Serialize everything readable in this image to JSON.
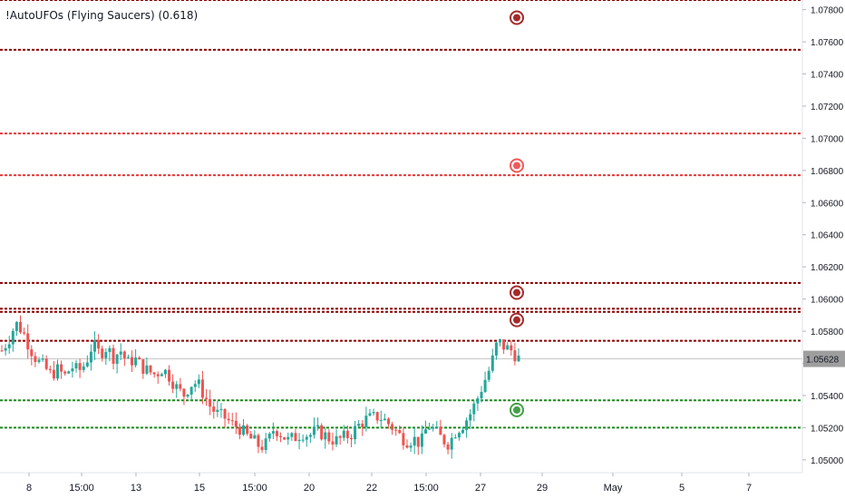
{
  "indicator": {
    "label": "!AutoUFOs (Flying Saucers) (0.618)"
  },
  "colors": {
    "bull": "#26a69a",
    "bear": "#ef5350",
    "dark_red": "#8b0000",
    "red": "#e53935",
    "green": "#1b8a1b",
    "last_price_bg": "#9e9e9e",
    "marker_dark": "#a52a2a",
    "marker_red": "#f05a5a",
    "marker_green": "#43a047"
  },
  "chart_data": {
    "type": "candlestick",
    "title": "",
    "xlabel": "",
    "ylabel": "",
    "ylim": [
      1.0492,
      1.0786
    ],
    "y_ticks": [
      "1.07800",
      "1.07600",
      "1.07400",
      "1.07200",
      "1.07000",
      "1.06800",
      "1.06600",
      "1.06400",
      "1.06200",
      "1.06000",
      "1.05800",
      "1.05600",
      "1.05400",
      "1.05200",
      "1.05000"
    ],
    "x_ticks": [
      "8",
      "15:00",
      "13",
      "15",
      "15:00",
      "20",
      "22",
      "15:00",
      "27",
      "29",
      "May",
      "5",
      "7"
    ],
    "last_price": "1.05628",
    "levels": [
      {
        "price": 1.0786,
        "color": "dark_red"
      },
      {
        "price": 1.0755,
        "color": "dark_red"
      },
      {
        "price": 1.0703,
        "color": "red"
      },
      {
        "price": 1.0677,
        "color": "red"
      },
      {
        "price": 1.061,
        "color": "dark_red"
      },
      {
        "price": 1.0594,
        "color": "dark_red"
      },
      {
        "price": 1.0592,
        "color": "dark_red"
      },
      {
        "price": 1.0574,
        "color": "dark_red"
      },
      {
        "price": 1.0537,
        "color": "green"
      },
      {
        "price": 1.052,
        "color": "green"
      }
    ],
    "markers": [
      {
        "price": 1.0775,
        "color": "marker_dark"
      },
      {
        "price": 1.0683,
        "color": "marker_red"
      },
      {
        "price": 1.0604,
        "color": "marker_dark"
      },
      {
        "price": 1.0587,
        "color": "marker_dark"
      },
      {
        "price": 1.0531,
        "color": "marker_green"
      }
    ],
    "path": [
      1.0568,
      1.0575,
      1.0585,
      1.058,
      1.057,
      1.0562,
      1.0558,
      1.0553,
      1.0556,
      1.0552,
      1.0558,
      1.0555,
      1.056,
      1.0572,
      1.0566,
      1.057,
      1.0564,
      1.0568,
      1.056,
      1.0563,
      1.0558,
      1.0555,
      1.0553,
      1.0557,
      1.0552,
      1.0545,
      1.054,
      1.0547,
      1.0548,
      1.054,
      1.0532,
      1.0528,
      1.0526,
      1.0522,
      1.052,
      1.0515,
      1.0512,
      1.0508,
      1.051,
      1.052,
      1.0516,
      1.0512,
      1.0514,
      1.0517,
      1.0515,
      1.0518,
      1.0516,
      1.0513,
      1.0512,
      1.0514,
      1.0516,
      1.0521,
      1.0525,
      1.0526,
      1.0527,
      1.0524,
      1.052,
      1.0515,
      1.0512,
      1.0513,
      1.051,
      1.0522,
      1.0518,
      1.0513,
      1.051,
      1.0518,
      1.0522,
      1.0528,
      1.0537,
      1.0548,
      1.0558,
      1.0574,
      1.057,
      1.0568,
      1.0563
    ],
    "series": [
      {
        "name": "",
        "x_start": "7",
        "x_end": "28"
      }
    ]
  }
}
